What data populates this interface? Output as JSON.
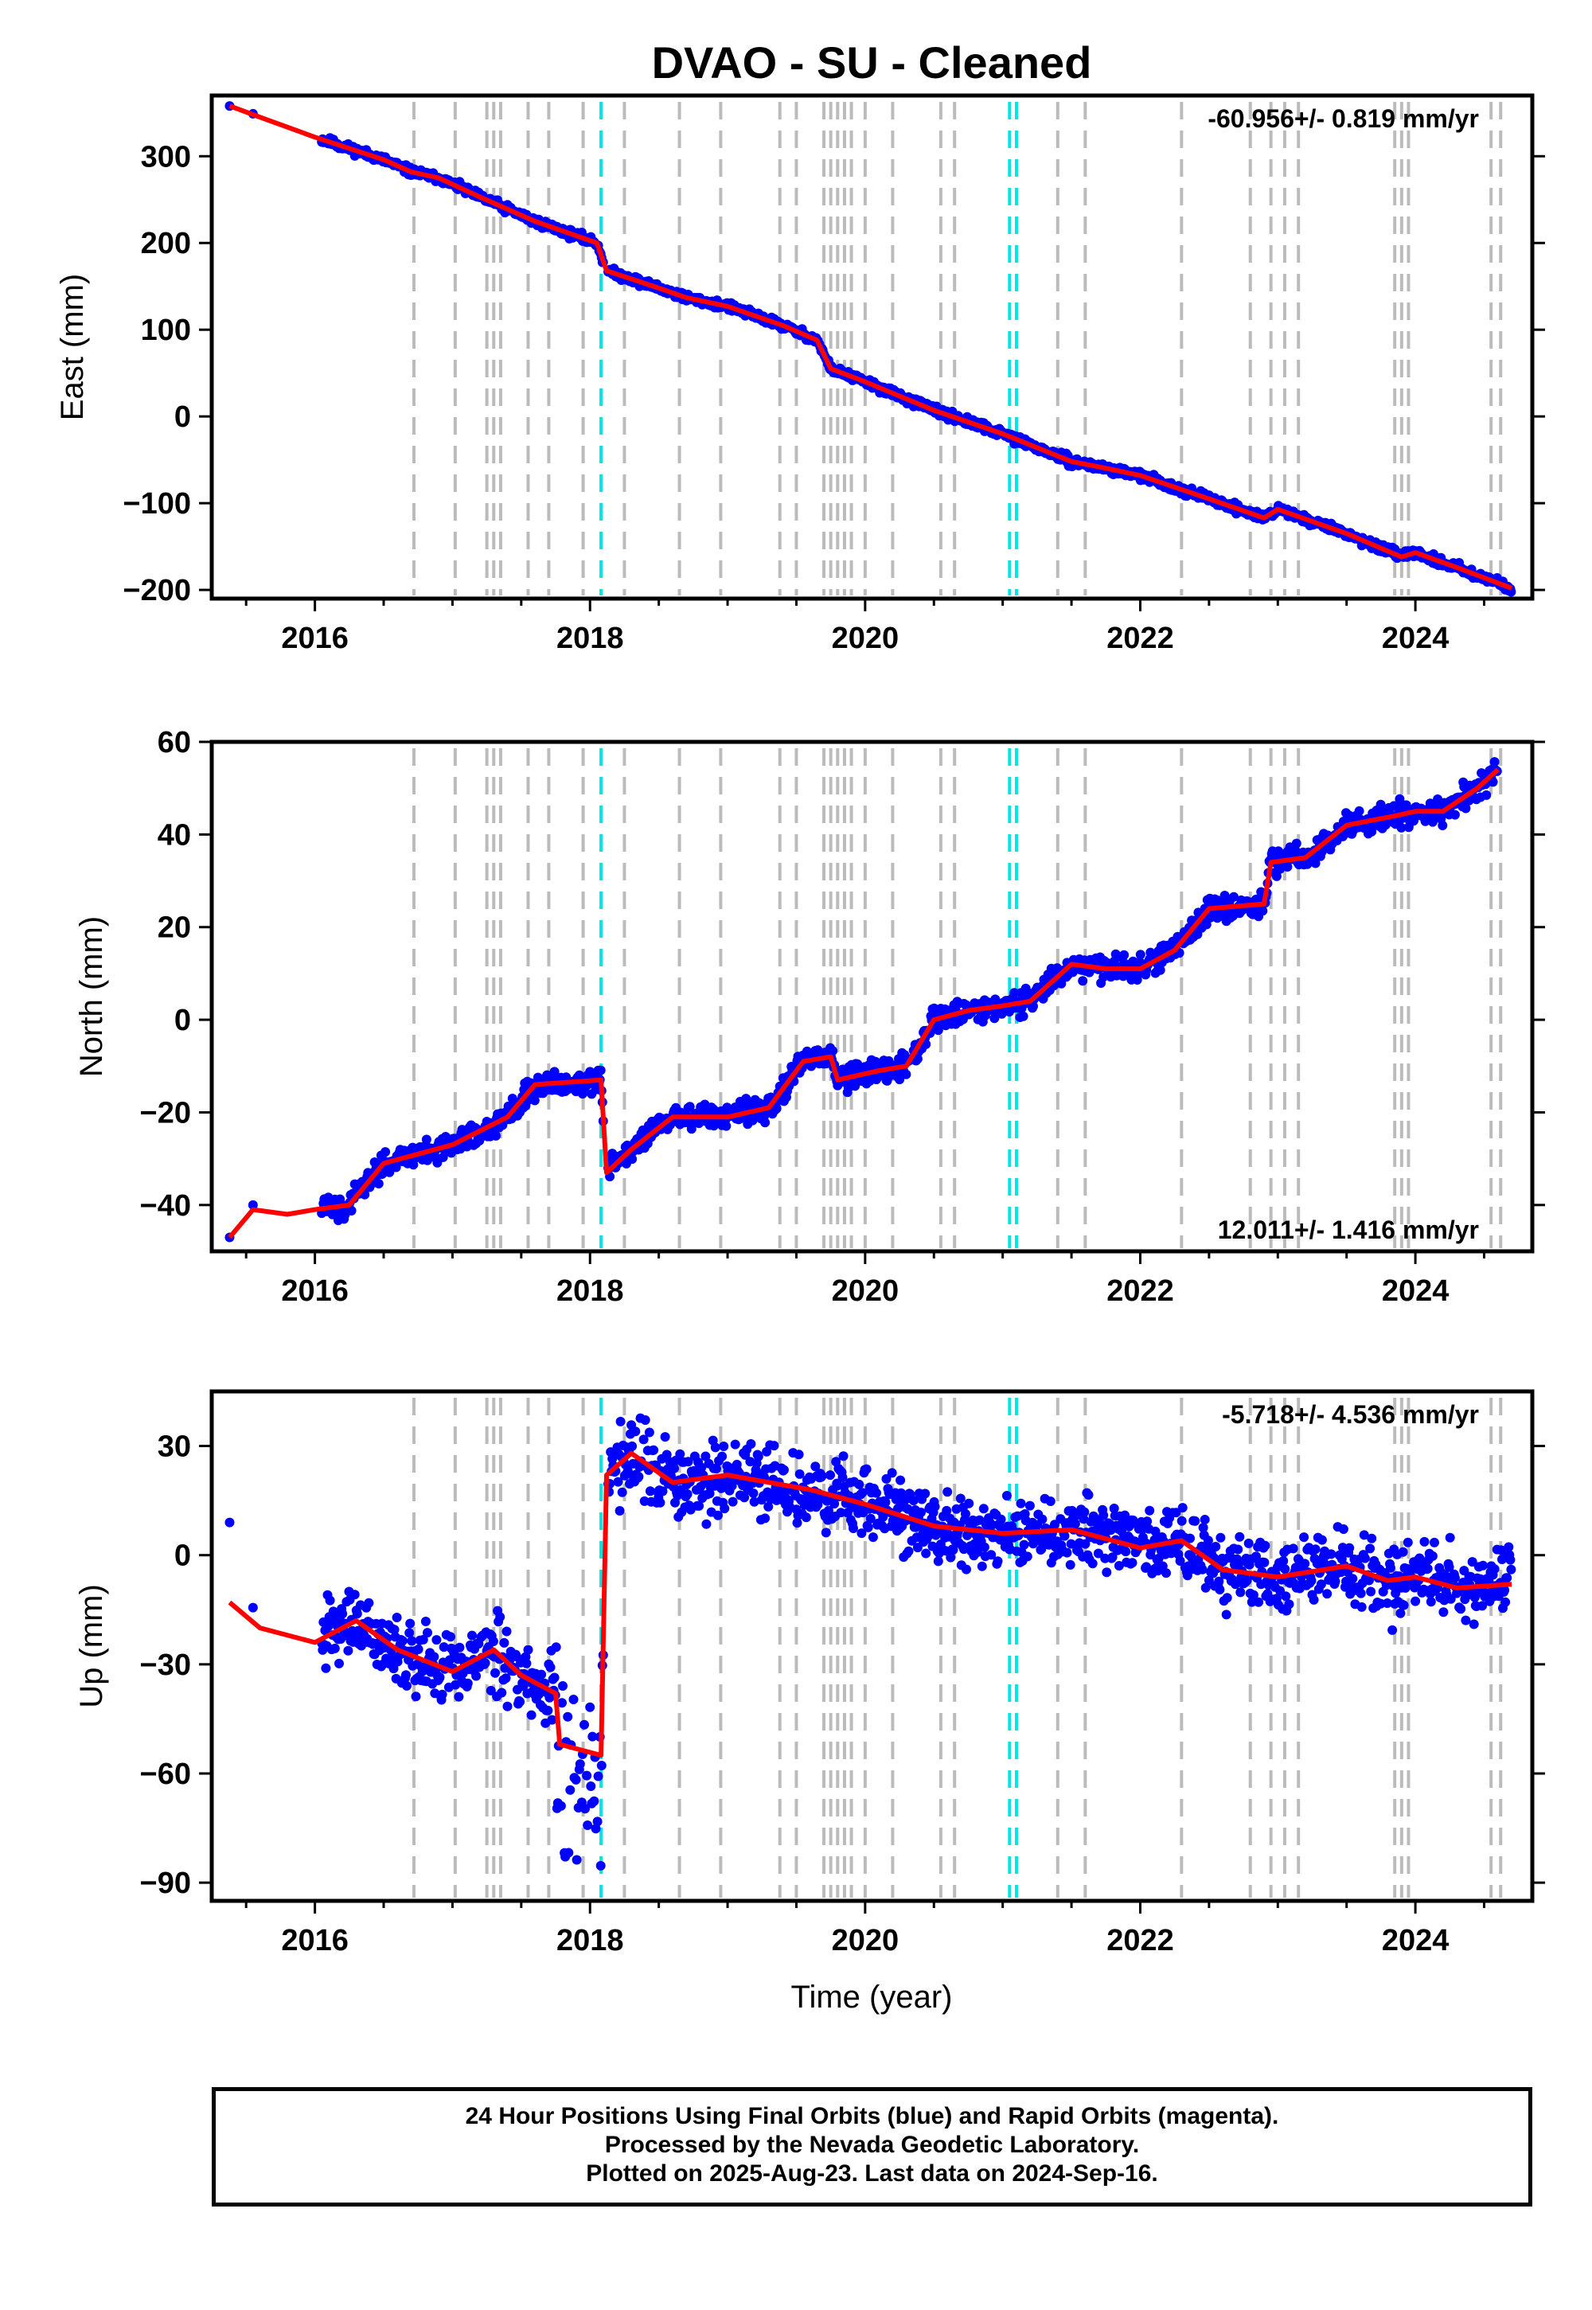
{
  "title": "DVAO  - SU - Cleaned",
  "xlabel": "Time (year)",
  "footer": {
    "line1": "24 Hour Positions Using Final Orbits (blue) and Rapid Orbits (magenta).",
    "line2": "Processed by the Nevada Geodetic Laboratory.",
    "line3": "Plotted on 2025-Aug-23. Last data on 2024-Sep-16."
  },
  "colors": {
    "data": "#0000ff",
    "model": "#ff0000",
    "event": "#bbbbbb",
    "antenna_change": "#00e5e5"
  },
  "chart_data": [
    {
      "type": "scatter",
      "component": "East",
      "ylabel": "East (mm)",
      "rate_label": "-60.956+/- 0.819 mm/yr",
      "xlim": [
        2015.25,
        2024.85
      ],
      "ylim": [
        -210,
        370
      ],
      "xticks": [
        2016,
        2018,
        2020,
        2022,
        2024
      ],
      "yticks": [
        -200,
        -100,
        0,
        100,
        200,
        300
      ],
      "ytick_labels": [
        "−200",
        "−100",
        "0",
        "100",
        "200",
        "300"
      ],
      "series": [
        {
          "x": [
            2015.38,
            2015.6,
            2016.0,
            2016.5,
            2016.7,
            2016.9,
            2017.2,
            2017.6,
            2018.05,
            2018.12,
            2018.5,
            2018.7,
            2019.0,
            2019.4,
            2019.65,
            2019.75,
            2020.0,
            2020.5,
            2021.0,
            2021.5,
            2021.7,
            2022.0,
            2022.5,
            2022.9,
            2023.0,
            2023.5,
            2023.9,
            2024.0,
            2024.3,
            2024.7
          ],
          "y": [
            358,
            345,
            322,
            296,
            282,
            275,
            253,
            225,
            200,
            168,
            148,
            137,
            127,
            105,
            88,
            55,
            40,
            7,
            -20,
            -52,
            -58,
            -68,
            -95,
            -117,
            -107,
            -135,
            -162,
            -157,
            -174,
            -198
          ]
        }
      ]
    },
    {
      "type": "scatter",
      "component": "North",
      "ylabel": "North (mm)",
      "rate_label": "12.011+/- 1.416 mm/yr",
      "xlim": [
        2015.25,
        2024.85
      ],
      "ylim": [
        -50,
        60
      ],
      "xticks": [
        2016,
        2018,
        2020,
        2022,
        2024
      ],
      "yticks": [
        -40,
        -20,
        0,
        20,
        40,
        60
      ],
      "ytick_labels": [
        "−40",
        "−20",
        "0",
        "20",
        "40",
        "60"
      ],
      "series": [
        {
          "x": [
            2015.38,
            2015.55,
            2015.8,
            2016.0,
            2016.25,
            2016.5,
            2016.75,
            2017.0,
            2017.2,
            2017.4,
            2017.6,
            2018.08,
            2018.12,
            2018.3,
            2018.6,
            2019.0,
            2019.3,
            2019.55,
            2019.75,
            2019.8,
            2020.1,
            2020.3,
            2020.5,
            2020.75,
            2021.0,
            2021.2,
            2021.5,
            2021.75,
            2022.0,
            2022.25,
            2022.5,
            2022.9,
            2022.95,
            2023.2,
            2023.5,
            2023.85,
            2024.0,
            2024.2,
            2024.45,
            2024.6
          ],
          "y": [
            -47,
            -41,
            -42,
            -41,
            -40,
            -31,
            -29,
            -27,
            -24,
            -21,
            -14,
            -13,
            -33,
            -28,
            -21,
            -21,
            -19,
            -9,
            -8,
            -13,
            -11,
            -10,
            0,
            2,
            3,
            4,
            12,
            11,
            11,
            15,
            24,
            25,
            34,
            35,
            42,
            44,
            45,
            45,
            50,
            54
          ]
        }
      ]
    },
    {
      "type": "scatter",
      "component": "Up",
      "ylabel": "Up (mm)",
      "rate_label": "-5.718+/- 4.536 mm/yr",
      "xlim": [
        2015.25,
        2024.85
      ],
      "ylim": [
        -95,
        45
      ],
      "xticks": [
        2016,
        2018,
        2020,
        2022,
        2024
      ],
      "yticks": [
        -90,
        -60,
        -30,
        0,
        30
      ],
      "ytick_labels": [
        "−90",
        "−60",
        "−30",
        "0",
        "30"
      ],
      "series": [
        {
          "x": [
            2015.38,
            2015.6,
            2016.0,
            2016.3,
            2016.6,
            2017.0,
            2017.3,
            2017.5,
            2017.75,
            2017.78,
            2018.08,
            2018.12,
            2018.3,
            2018.6,
            2019.0,
            2019.3,
            2019.6,
            2020.0,
            2020.5,
            2021.0,
            2021.5,
            2022.0,
            2022.3,
            2022.6,
            2023.0,
            2023.5,
            2023.8,
            2024.0,
            2024.3,
            2024.7
          ],
          "y": [
            -13,
            -20,
            -24,
            -18,
            -26,
            -32,
            -26,
            -33,
            -38,
            -52,
            -55,
            22,
            28,
            20,
            22,
            20,
            18,
            14,
            8,
            6,
            7,
            2,
            4,
            -4,
            -6,
            -3,
            -7,
            -6,
            -9,
            -8
          ]
        }
      ]
    }
  ]
}
